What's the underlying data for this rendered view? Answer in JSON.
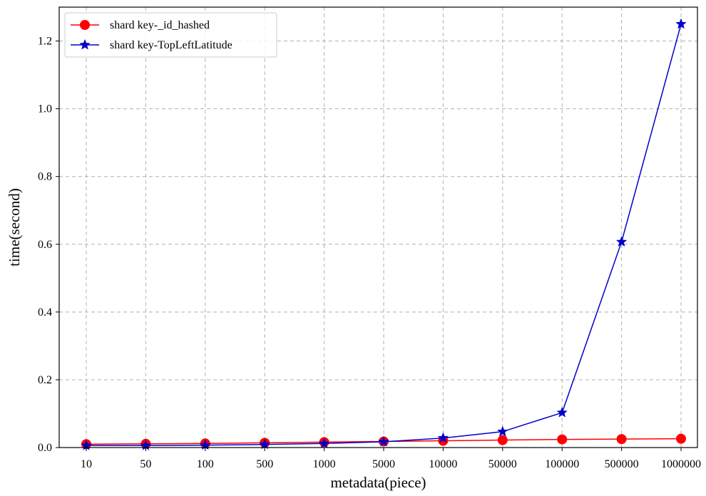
{
  "chart_data": {
    "type": "line",
    "title": "",
    "xlabel": "metadata(piece)",
    "ylabel": "time(second)",
    "categories": [
      "10",
      "50",
      "100",
      "500",
      "1000",
      "5000",
      "10000",
      "50000",
      "100000",
      "500000",
      "1000000"
    ],
    "ylim": [
      0.0,
      1.3
    ],
    "yticks": [
      "0.0",
      "0.2",
      "0.4",
      "0.6",
      "0.8",
      "1.0",
      "1.2"
    ],
    "grid": true,
    "legend_position": "top-left",
    "series": [
      {
        "name": "shard key-_id_hashed",
        "color": "#ff0000",
        "marker": "circle",
        "values": [
          0.01,
          0.011,
          0.012,
          0.014,
          0.016,
          0.018,
          0.02,
          0.022,
          0.024,
          0.025,
          0.026
        ]
      },
      {
        "name": "shard key-TopLeftLatitude",
        "color": "#0000cc",
        "marker": "star",
        "values": [
          0.006,
          0.006,
          0.007,
          0.009,
          0.012,
          0.017,
          0.028,
          0.047,
          0.103,
          0.607,
          1.25
        ]
      }
    ]
  }
}
